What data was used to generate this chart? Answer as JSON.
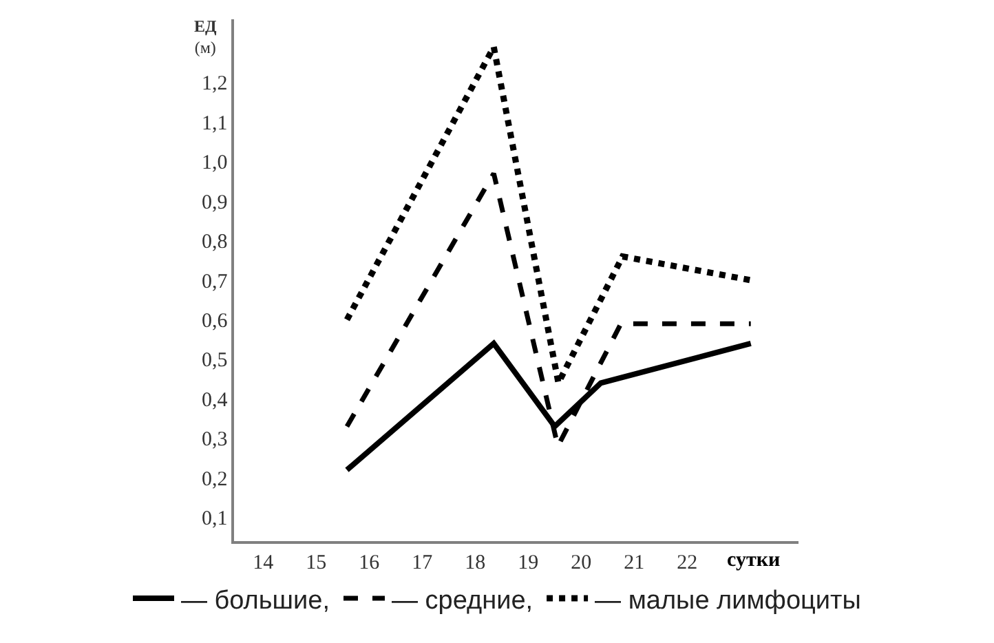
{
  "chart_data": {
    "type": "line",
    "xlabel": "сутки",
    "ylabel": "ЕД (м)",
    "xlim": [
      13.45,
      24.1
    ],
    "ylim": [
      0.04,
      1.36
    ],
    "xticks": [
      14,
      15,
      16,
      17,
      18,
      19,
      20,
      21,
      22
    ],
    "yticks": [
      {
        "value": 0.1,
        "label": "0,1"
      },
      {
        "value": 0.2,
        "label": "0,2"
      },
      {
        "value": 0.3,
        "label": "0,3"
      },
      {
        "value": 0.4,
        "label": "0,4"
      },
      {
        "value": 0.5,
        "label": "0,5"
      },
      {
        "value": 0.6,
        "label": "0,6"
      },
      {
        "value": 0.7,
        "label": "0,7"
      },
      {
        "value": 0.8,
        "label": "0,8"
      },
      {
        "value": 0.9,
        "label": "0,9"
      },
      {
        "value": 1.0,
        "label": "1,0"
      },
      {
        "value": 1.1,
        "label": "1,1"
      },
      {
        "value": 1.2,
        "label": "1,2"
      }
    ],
    "legend": "bottom",
    "marker": "none",
    "series": [
      {
        "name": "— большие,",
        "color": "#000000",
        "line_style": "solid",
        "x": [
          15.58,
          18.35,
          19.5,
          20.37,
          23.2
        ],
        "values": [
          0.22,
          0.54,
          0.33,
          0.44,
          0.54
        ]
      },
      {
        "name": "— средние,",
        "color": "#000000",
        "line_style": "dashed",
        "x": [
          15.58,
          18.35,
          19.56,
          20.75,
          23.2
        ],
        "values": [
          0.33,
          0.97,
          0.28,
          0.59,
          0.59
        ]
      },
      {
        "name": "— малые лимфоциты",
        "color": "#000000",
        "line_style": "dotted",
        "x": [
          15.58,
          18.35,
          19.57,
          20.78,
          23.2
        ],
        "values": [
          0.6,
          1.29,
          0.44,
          0.76,
          0.7
        ]
      }
    ]
  }
}
